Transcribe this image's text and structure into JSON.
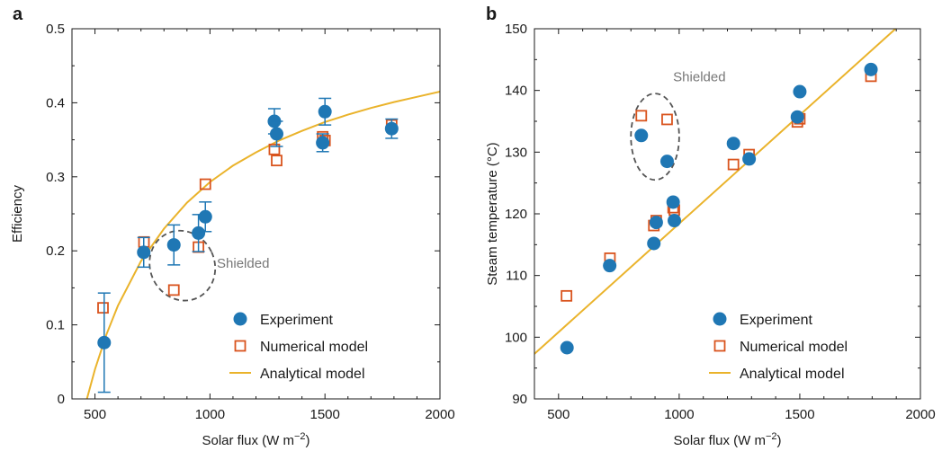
{
  "colors": {
    "experiment": "#1f77b4",
    "numerical": "#d9541e",
    "analytical": "#eab32b",
    "shield": "#555555",
    "axis": "#1a1a1a"
  },
  "chart_data": [
    {
      "panel_label": "a",
      "type": "scatter",
      "xlabel": "Solar flux (W m",
      "xlabel_sup": "−2",
      "xlabel_close": ")",
      "ylabel": "Efficiency",
      "xlim": [
        400,
        2000
      ],
      "ylim": [
        0,
        0.5
      ],
      "xticks": [
        500,
        1000,
        1500,
        2000
      ],
      "xtick_labels": [
        "500",
        "1000",
        "1500",
        "2000"
      ],
      "yticks": [
        0,
        0.1,
        0.2,
        0.3,
        0.4,
        0.5
      ],
      "ytick_labels": [
        "0",
        "0.1",
        "0.2",
        "0.3",
        "0.4",
        "0.5"
      ],
      "legend": {
        "position": "bottom-right",
        "entries": [
          "Experiment",
          "Numerical model",
          "Analytical model"
        ]
      },
      "annotation": "Shielded",
      "shielded_region": {
        "x_center": 880,
        "y_center": 0.18,
        "x_radius": 140,
        "y_radius": 0.048
      },
      "series": [
        {
          "name": "Experiment",
          "marker": "circle",
          "points": [
            {
              "x": 540,
              "y": 0.076,
              "err": 0.067
            },
            {
              "x": 712,
              "y": 0.198,
              "err": 0.02
            },
            {
              "x": 843,
              "y": 0.208,
              "err": 0.027
            },
            {
              "x": 950,
              "y": 0.224,
              "err": 0.025
            },
            {
              "x": 980,
              "y": 0.246,
              "err": 0.02
            },
            {
              "x": 1280,
              "y": 0.375,
              "err": 0.017
            },
            {
              "x": 1290,
              "y": 0.358,
              "err": 0.017
            },
            {
              "x": 1490,
              "y": 0.346,
              "err": 0.012
            },
            {
              "x": 1500,
              "y": 0.388,
              "err": 0.018
            },
            {
              "x": 1790,
              "y": 0.365,
              "err": 0.013
            }
          ]
        },
        {
          "name": "Numerical model",
          "marker": "square",
          "points": [
            {
              "x": 535,
              "y": 0.123
            },
            {
              "x": 713,
              "y": 0.212
            },
            {
              "x": 843,
              "y": 0.147
            },
            {
              "x": 950,
              "y": 0.205
            },
            {
              "x": 980,
              "y": 0.29
            },
            {
              "x": 1280,
              "y": 0.337
            },
            {
              "x": 1290,
              "y": 0.322
            },
            {
              "x": 1490,
              "y": 0.354
            },
            {
              "x": 1500,
              "y": 0.349
            },
            {
              "x": 1790,
              "y": 0.37
            }
          ]
        },
        {
          "name": "Analytical model",
          "marker": "line",
          "x": [
            465,
            500,
            550,
            600,
            700,
            800,
            900,
            1000,
            1100,
            1200,
            1300,
            1400,
            1500,
            1600,
            1700,
            1800,
            1900,
            2000
          ],
          "y": [
            0,
            0.04,
            0.087,
            0.126,
            0.186,
            0.23,
            0.265,
            0.293,
            0.315,
            0.333,
            0.349,
            0.362,
            0.374,
            0.384,
            0.393,
            0.401,
            0.408,
            0.415
          ]
        }
      ]
    },
    {
      "panel_label": "b",
      "type": "scatter",
      "xlabel": "Solar flux (W m",
      "xlabel_sup": "−2",
      "xlabel_close": ")",
      "ylabel": "Steam temperature (°C)",
      "xlim": [
        400,
        2000
      ],
      "ylim": [
        90,
        150
      ],
      "xticks": [
        500,
        1000,
        1500,
        2000
      ],
      "xtick_labels": [
        "500",
        "1000",
        "1500",
        "2000"
      ],
      "yticks": [
        90,
        100,
        110,
        120,
        130,
        140,
        150
      ],
      "ytick_labels": [
        "90",
        "100",
        "110",
        "120",
        "130",
        "140",
        "150"
      ],
      "legend": {
        "position": "bottom-right",
        "entries": [
          "Experiment",
          "Numerical model",
          "Analytical model"
        ]
      },
      "annotation": "Shielded",
      "shielded_region": {
        "x_center": 900,
        "y_center": 132.5,
        "x_radius": 100,
        "y_radius": 7
      },
      "series": [
        {
          "name": "Experiment",
          "marker": "circle",
          "points": [
            {
              "x": 535,
              "y": 98.3
            },
            {
              "x": 712,
              "y": 111.6
            },
            {
              "x": 843,
              "y": 132.7
            },
            {
              "x": 895,
              "y": 115.2
            },
            {
              "x": 905,
              "y": 118.6
            },
            {
              "x": 950,
              "y": 128.5
            },
            {
              "x": 975,
              "y": 121.9
            },
            {
              "x": 980,
              "y": 118.9
            },
            {
              "x": 1225,
              "y": 131.4
            },
            {
              "x": 1290,
              "y": 128.9
            },
            {
              "x": 1490,
              "y": 135.7
            },
            {
              "x": 1500,
              "y": 139.8
            },
            {
              "x": 1795,
              "y": 143.4
            }
          ]
        },
        {
          "name": "Numerical model",
          "marker": "square",
          "points": [
            {
              "x": 533,
              "y": 106.7
            },
            {
              "x": 713,
              "y": 112.8
            },
            {
              "x": 843,
              "y": 135.9
            },
            {
              "x": 895,
              "y": 118.1
            },
            {
              "x": 905,
              "y": 118.9
            },
            {
              "x": 950,
              "y": 135.3
            },
            {
              "x": 975,
              "y": 121.0
            },
            {
              "x": 980,
              "y": 120.6
            },
            {
              "x": 1225,
              "y": 128.0
            },
            {
              "x": 1290,
              "y": 129.6
            },
            {
              "x": 1490,
              "y": 134.9
            },
            {
              "x": 1500,
              "y": 135.4
            },
            {
              "x": 1795,
              "y": 142.3
            }
          ]
        },
        {
          "name": "Analytical model",
          "marker": "line",
          "x": [
            400,
            1897
          ],
          "y": [
            97.3,
            150
          ]
        }
      ]
    }
  ]
}
